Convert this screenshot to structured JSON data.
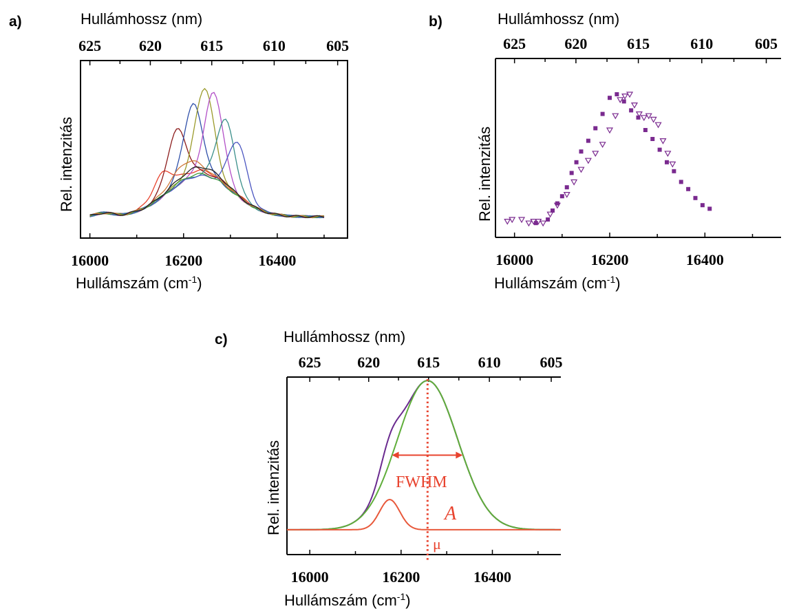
{
  "chart_data": [
    {
      "panel": "a)",
      "type": "line",
      "top_axis_title": "Hullámhossz (nm)",
      "top_ticks": [
        "625",
        "620",
        "615",
        "610",
        "605"
      ],
      "top_tick_values": [
        625,
        620,
        615,
        610,
        605
      ],
      "xlabel": "Hullámszám (cm⁻¹)",
      "ylabel": "Rel. intenzitás",
      "xlim": [
        15980,
        16550
      ],
      "ylim": [
        0,
        1
      ],
      "x_ticks": [
        "16000",
        "16200",
        "16400"
      ],
      "x_tick_values": [
        16000,
        16200,
        16400
      ],
      "legend": "none",
      "series": [
        {
          "color": "#e8432e",
          "peak_x": 16155,
          "peak_y": 0.5,
          "width": 28,
          "broad_y": 0.38
        },
        {
          "color": "#8b1a1a",
          "peak_x": 16185,
          "peak_y": 0.67,
          "width": 28,
          "broad_y": 0.37
        },
        {
          "color": "#2e4fa8",
          "peak_x": 16220,
          "peak_y": 0.76,
          "width": 28,
          "broad_y": 0.36
        },
        {
          "color": "#9a9a2a",
          "peak_x": 16245,
          "peak_y": 0.85,
          "width": 28,
          "broad_y": 0.36
        },
        {
          "color": "#b24fc7",
          "peak_x": 16265,
          "peak_y": 0.84,
          "width": 28,
          "broad_y": 0.35
        },
        {
          "color": "#3a8f8a",
          "peak_x": 16290,
          "peak_y": 0.73,
          "width": 28,
          "broad_y": 0.35
        },
        {
          "color": "#4a55c0",
          "peak_x": 16315,
          "peak_y": 0.66,
          "width": 28,
          "broad_y": 0.35
        },
        {
          "color": "#3f9a3a",
          "peak_x": 16120,
          "peak_y": 0.33,
          "width": 28,
          "broad_y": 0.36
        },
        {
          "color": "#d07a3a",
          "peak_x": 16205,
          "peak_y": 0.45,
          "width": 40,
          "broad_y": 0.37
        },
        {
          "color": "#222222",
          "peak_x": 16240,
          "peak_y": 0.4,
          "width": 60,
          "broad_y": 0.36
        }
      ]
    },
    {
      "panel": "b)",
      "type": "scatter",
      "top_axis_title": "Hullámhossz (nm)",
      "top_ticks": [
        "625",
        "620",
        "615",
        "610",
        "605"
      ],
      "top_tick_values": [
        625,
        620,
        615,
        610,
        605
      ],
      "xlabel": "Hullámszám (cm⁻¹)",
      "ylabel": "Rel. intenzitás",
      "xlim": [
        15960,
        16560
      ],
      "ylim": [
        0,
        1
      ],
      "x_ticks": [
        "16000",
        "16200",
        "16400"
      ],
      "x_tick_values": [
        16000,
        16200,
        16400
      ],
      "legend": "none",
      "marker_color": "#7a2a8f",
      "series": [
        {
          "marker": "square",
          "x": [
            16045,
            16070,
            16080,
            16090,
            16100,
            16110,
            16120,
            16130,
            16140,
            16155,
            16170,
            16185,
            16200,
            16215,
            16230,
            16245,
            16260,
            16275,
            16290,
            16305,
            16320,
            16335,
            16350,
            16365,
            16380,
            16395,
            16410
          ],
          "y": [
            0.08,
            0.1,
            0.15,
            0.19,
            0.23,
            0.28,
            0.36,
            0.42,
            0.48,
            0.54,
            0.61,
            0.69,
            0.78,
            0.8,
            0.76,
            0.71,
            0.67,
            0.6,
            0.55,
            0.49,
            0.42,
            0.37,
            0.31,
            0.27,
            0.22,
            0.18,
            0.16
          ]
        },
        {
          "marker": "triangle-down",
          "x": [
            15985,
            15995,
            16015,
            16030,
            16040,
            16050,
            16060,
            16075,
            16090,
            16110,
            16125,
            16140,
            16155,
            16170,
            16185,
            16200,
            16212,
            16222,
            16232,
            16242,
            16252,
            16262,
            16272,
            16282,
            16292,
            16302,
            16312,
            16322,
            16332
          ],
          "y": [
            0.09,
            0.1,
            0.1,
            0.08,
            0.09,
            0.09,
            0.08,
            0.13,
            0.18,
            0.24,
            0.31,
            0.38,
            0.43,
            0.47,
            0.52,
            0.6,
            0.68,
            0.77,
            0.79,
            0.8,
            0.74,
            0.69,
            0.67,
            0.68,
            0.66,
            0.63,
            0.54,
            0.47,
            0.41
          ]
        }
      ]
    },
    {
      "panel": "c)",
      "type": "line",
      "top_axis_title": "Hullámhossz (nm)",
      "top_ticks": [
        "625",
        "620",
        "615",
        "610",
        "605"
      ],
      "top_tick_values": [
        625,
        620,
        615,
        610,
        605
      ],
      "xlabel": "Hullámszám (cm⁻¹)",
      "ylabel": "Rel. intenzitás",
      "xlim": [
        15950,
        16550
      ],
      "ylim": [
        0,
        1
      ],
      "x_ticks": [
        "16000",
        "16200",
        "16400"
      ],
      "x_tick_values": [
        16000,
        16200,
        16400
      ],
      "legend": "none",
      "series": [
        {
          "color": "#6a2a8f",
          "kind": "sum"
        },
        {
          "color": "#5fae3a",
          "kind": "gaussian",
          "mu": 16258,
          "sigma": 66,
          "amp": 0.84,
          "base": 0.14
        },
        {
          "color": "#e8583a",
          "kind": "gaussian",
          "mu": 16175,
          "sigma": 22,
          "amp": 0.17,
          "base": 0.14
        }
      ],
      "mu_x": 16258,
      "fwhm_x": [
        16180,
        16335
      ],
      "annotations": {
        "fwhm_label": "FWHM",
        "amplitude_label": "A",
        "mu_label": "μ"
      },
      "annotation_color": "#e8432e"
    }
  ]
}
